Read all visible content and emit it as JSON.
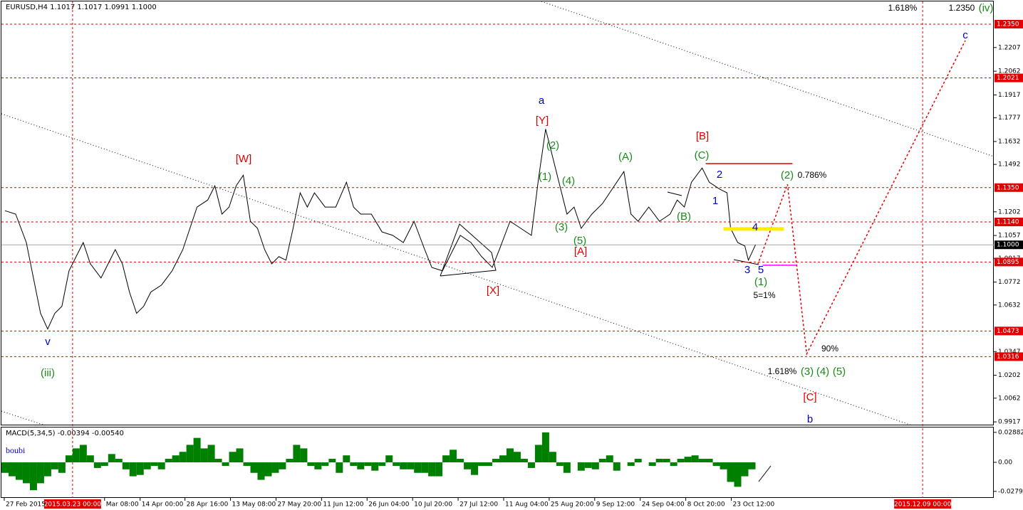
{
  "chart_data": [
    {
      "type": "line",
      "title": "EURUSD,H4  1.1017 1.1017 1.0991 1.1000",
      "xlim": [
        0,
        1395
      ],
      "ylim": [
        0.99,
        1.2489
      ],
      "xticks": [
        {
          "value": 4,
          "label": "27 Feb 2015"
        },
        {
          "value": 145,
          "label": "Mar 08:00"
        },
        {
          "value": 195,
          "label": "14 Apr 00:00"
        },
        {
          "value": 258,
          "label": "28 Apr 16:00"
        },
        {
          "value": 322,
          "label": "13 May 08:00"
        },
        {
          "value": 386,
          "label": "27 May 20:00"
        },
        {
          "value": 450,
          "label": "11 Jun 12:00"
        },
        {
          "value": 514,
          "label": "26 Jun 04:00"
        },
        {
          "value": 578,
          "label": "10 Jul 20:00"
        },
        {
          "value": 642,
          "label": "27 Jul 12:00"
        },
        {
          "value": 706,
          "label": "11 Aug 04:00"
        },
        {
          "value": 770,
          "label": "25 Aug 20:00"
        },
        {
          "value": 834,
          "label": "9 Sep 12:00"
        },
        {
          "value": 898,
          "label": "24 Sep 04:00"
        },
        {
          "value": 962,
          "label": "8 Oct 20:00"
        },
        {
          "value": 1026,
          "label": "23 Oct 12:00"
        }
      ],
      "yticks": [
        1.2207,
        1.2062,
        1.1917,
        1.1777,
        1.1632,
        1.1492,
        1.1202,
        1.1057,
        1.0917,
        1.0772,
        1.0632,
        1.0347,
        1.0202,
        1.0062,
        0.9917
      ],
      "levels": [
        {
          "value": 1.235,
          "label": "1.2350"
        },
        1.2021,
        {
          "value": 1.135,
          "label": "1.1350"
        },
        {
          "value": 1.114,
          "label": "1.1140"
        },
        1.0895,
        1.0473,
        1.0316
      ],
      "level_color": "#e00000",
      "current_price": {
        "value": 1.1,
        "label": "1.1000"
      },
      "vlines": [
        {
          "value": 100,
          "label": "2015.03.23 00:00"
        },
        {
          "value": 1295,
          "label": "2015.12.09 00:00"
        }
      ],
      "series": [
        {
          "color": "#000000",
          "x": [
            5,
            20,
            35,
            45,
            55,
            65,
            75,
            85,
            95,
            105,
            115,
            125,
            140,
            150,
            160,
            170,
            180,
            190,
            200,
            210,
            225,
            240,
            255,
            265,
            275,
            290,
            300,
            310,
            320,
            330,
            340,
            350,
            360,
            370,
            380,
            390,
            400,
            410,
            420,
            430,
            440,
            455,
            470,
            485,
            495,
            505,
            520,
            535,
            550,
            565,
            580,
            595,
            605,
            620,
            635,
            645,
            660,
            675,
            690,
            700,
            715,
            730,
            745,
            755,
            765,
            775,
            785,
            795,
            805,
            815,
            830,
            845,
            855,
            875,
            885,
            895,
            910,
            925,
            940,
            950,
            960,
            970,
            985,
            995,
            1010,
            1020,
            1025,
            1035,
            1045,
            1050,
            1060
          ],
          "values": [
            1.1209,
            1.1188,
            1.1014,
            1.0797,
            1.0581,
            1.0485,
            1.0581,
            1.0624,
            1.0841,
            1.0928,
            1.1014,
            1.0884,
            1.0797,
            1.0884,
            1.0971,
            1.0884,
            1.0711,
            1.0581,
            1.0624,
            1.0711,
            1.0754,
            1.0841,
            1.0971,
            1.1101,
            1.1231,
            1.1274,
            1.1361,
            1.1188,
            1.1231,
            1.1361,
            1.1426,
            1.1144,
            1.1101,
            1.0971,
            1.0884,
            1.0928,
            1.0906,
            1.1101,
            1.1318,
            1.1231,
            1.1318,
            1.1231,
            1.1231,
            1.1383,
            1.1231,
            1.1188,
            1.1188,
            1.1079,
            1.1058,
            1.1014,
            1.1144,
            1.0971,
            1.0862,
            1.0841,
            1.0971,
            1.1058,
            1.1014,
            1.0928,
            1.0862,
            1.0971,
            1.1144,
            1.1101,
            1.1058,
            1.1405,
            1.1708,
            1.1535,
            1.1361,
            1.1188,
            1.1231,
            1.1101,
            1.1188,
            1.1253,
            1.1318,
            1.1448,
            1.1188,
            1.1144,
            1.1231,
            1.1144,
            1.1188,
            1.1274,
            1.1231,
            1.1383,
            1.147,
            1.1383,
            1.134,
            1.1318,
            1.1101,
            1.1014,
            1.0993,
            1.0906,
            1.1
          ]
        },
        {
          "color": "#e00000",
          "dash": true,
          "x": [
            1063,
            1105,
            1132,
            1355
          ],
          "values": [
            1.0878,
            1.137,
            1.0333,
            1.225
          ]
        },
        {
          "color": "#e00000",
          "x": [
            990,
            1112
          ],
          "values": [
            1.1497,
            1.1497
          ]
        },
        {
          "color": "#ffee00",
          "x": [
            1015,
            1100
          ],
          "values": [
            1.1097,
            1.1097
          ]
        },
        {
          "color": "#ff00ff",
          "x": [
            1070,
            1117
          ],
          "values": [
            1.0875,
            1.0875
          ]
        }
      ],
      "annotations": [
        {
          "text": "1.618%",
          "color": "#000000"
        },
        {
          "text": "1.2350",
          "color": "#000000"
        },
        {
          "text": "(iv)",
          "color": "#1a8a1a"
        },
        {
          "text": "c",
          "color": "#0000cc"
        },
        {
          "text": "a",
          "color": "#0000cc"
        },
        {
          "text": "[Y]",
          "color": "#dd0000"
        },
        {
          "text": "[W]",
          "color": "#dd0000"
        },
        {
          "text": "[B]",
          "color": "#dd0000"
        },
        {
          "text": "(2)",
          "color": "#1a8a1a"
        },
        {
          "text": "(A)",
          "color": "#1a8a1a"
        },
        {
          "text": "(C)",
          "color": "#1a8a1a"
        },
        {
          "text": "2",
          "color": "#0000cc"
        },
        {
          "text": "(2)",
          "color": "#1a8a1a"
        },
        {
          "text": "0.786%",
          "color": "#000000"
        },
        {
          "text": "(1)",
          "color": "#1a8a1a"
        },
        {
          "text": "(4)",
          "color": "#1a8a1a"
        },
        {
          "text": "1",
          "color": "#0000cc"
        },
        {
          "text": "(B)",
          "color": "#1a8a1a"
        },
        {
          "text": "(3)",
          "color": "#1a8a1a"
        },
        {
          "text": "4",
          "color": "#0000cc"
        },
        {
          "text": "(5)",
          "color": "#1a8a1a"
        },
        {
          "text": "[A]",
          "color": "#dd0000"
        },
        {
          "text": "3",
          "color": "#0000cc"
        },
        {
          "text": "5",
          "color": "#0000cc"
        },
        {
          "text": "(1)",
          "color": "#1a8a1a"
        },
        {
          "text": "5=1%",
          "color": "#000000"
        },
        {
          "text": "[X]",
          "color": "#dd0000"
        },
        {
          "text": "v",
          "color": "#0000cc"
        },
        {
          "text": "90%",
          "color": "#000000"
        },
        {
          "text": "(iii)",
          "color": "#1a8a1a"
        },
        {
          "text": "1.618%",
          "color": "#000000"
        },
        {
          "text": "(3)",
          "color": "#1a8a1a"
        },
        {
          "text": "(4)",
          "color": "#1a8a1a"
        },
        {
          "text": "(5)",
          "color": "#1a8a1a"
        },
        {
          "text": "[C]",
          "color": "#dd0000"
        },
        {
          "text": "b",
          "color": "#0000cc"
        }
      ]
    },
    {
      "type": "bar",
      "title": "MACD(5,34,5) -0.00394 -0.00540",
      "subtitle": "boubi",
      "color": "#008000",
      "xlim": [
        0,
        1395
      ],
      "ylim": [
        -0.0335,
        0.0335
      ],
      "yticks": [
        0.02882,
        {
          "value": 0,
          "label": "0.00"
        },
        -0.0279
      ],
      "x": [
        5,
        15,
        25,
        35,
        45,
        55,
        65,
        75,
        85,
        95,
        105,
        115,
        125,
        135,
        145,
        155,
        165,
        175,
        185,
        195,
        205,
        215,
        225,
        235,
        245,
        255,
        265,
        275,
        285,
        295,
        305,
        315,
        325,
        335,
        345,
        355,
        365,
        375,
        385,
        395,
        405,
        415,
        425,
        435,
        445,
        455,
        465,
        475,
        485,
        495,
        505,
        515,
        525,
        535,
        545,
        555,
        565,
        575,
        585,
        595,
        605,
        615,
        625,
        635,
        645,
        655,
        665,
        675,
        685,
        695,
        705,
        715,
        725,
        735,
        745,
        755,
        765,
        775,
        785,
        795,
        805,
        815,
        825,
        835,
        845,
        855,
        865,
        875,
        885,
        895,
        905,
        915,
        925,
        935,
        945,
        955,
        965,
        975,
        985,
        995,
        1005,
        1015,
        1025,
        1035,
        1045,
        1055
      ],
      "values": [
        -0.0101,
        -0.0134,
        -0.0168,
        -0.0201,
        -0.0268,
        -0.0201,
        -0.0134,
        -0.0067,
        -0.0101,
        0.0067,
        0.0134,
        0.0168,
        0.0067,
        -0.0054,
        -0.0034,
        0.008,
        0.0034,
        -0.0067,
        -0.0134,
        -0.0121,
        -0.0067,
        -0.0034,
        -0.0067,
        0.0034,
        0.0067,
        0.0101,
        0.0168,
        0.0235,
        0.0134,
        0.0168,
        0.0034,
        -0.0034,
        0.0101,
        0.0134,
        -0.0034,
        -0.0101,
        -0.0168,
        -0.0134,
        -0.0101,
        -0.0067,
        0.0034,
        0.0168,
        0.0134,
        -0.0034,
        -0.0067,
        -0.0034,
        0.0034,
        -0.0101,
        0.0067,
        -0.0034,
        -0.0067,
        -0.0034,
        -0.008,
        -0.0034,
        0.0067,
        -0.0034,
        -0.0067,
        -0.0067,
        -0.0101,
        -0.0101,
        -0.0134,
        -0.0134,
        0.0067,
        0.0121,
        0.0034,
        -0.0067,
        -0.0121,
        -0.0034,
        -0.0034,
        0.0034,
        0.0067,
        0.0134,
        0.0101,
        0.0034,
        -0.0054,
        0.0168,
        0.0288,
        0.0101,
        -0.0034,
        -0.0101,
        0,
        -0.008,
        -0.0054,
        -0.0067,
        0.0034,
        0.0067,
        -0.008,
        0,
        -0.0034,
        0.0034,
        0,
        -0.0034,
        0.0034,
        0.0034,
        -0.0034,
        0.0034,
        0.0054,
        0.0067,
        0.0034,
        0.0034,
        -0.0034,
        -0.0067,
        -0.0188,
        -0.0235,
        -0.0134,
        -0.0067
      ]
    }
  ]
}
